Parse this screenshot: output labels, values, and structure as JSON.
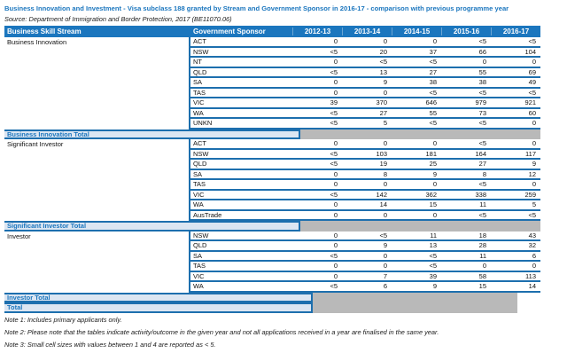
{
  "title": "Business Innovation and Investment - Visa subclass 188 granted by Stream and Government Sponsor in 2016-17 - comparison with previous programme year",
  "source": "Source: Department of Immigration and Border Protection, 2017 (BE11070.06)",
  "colors": {
    "header_bg": "#1b76be",
    "row_line": "#1d6fae",
    "total_band_bg": "#dce6f2",
    "total_text": "#1b76be",
    "gray_band": "#b9b9b9",
    "title_text": "#1b76be"
  },
  "table": {
    "headers": {
      "stream": "Business Skill Stream",
      "sponsor": "Government Sponsor",
      "years": [
        "2012-13",
        "2013-14",
        "2014-15",
        "2015-16",
        "2016-17"
      ]
    },
    "groups": [
      {
        "stream": "Business Innovation",
        "rows": [
          {
            "sponsor": "ACT",
            "values": [
              "0",
              "0",
              "0",
              "<5",
              "<5"
            ]
          },
          {
            "sponsor": "NSW",
            "values": [
              "<5",
              "20",
              "37",
              "66",
              "104"
            ]
          },
          {
            "sponsor": "NT",
            "values": [
              "0",
              "<5",
              "<5",
              "0",
              "0"
            ]
          },
          {
            "sponsor": "QLD",
            "values": [
              "<5",
              "13",
              "27",
              "55",
              "69"
            ]
          },
          {
            "sponsor": "SA",
            "values": [
              "0",
              "9",
              "38",
              "38",
              "49"
            ]
          },
          {
            "sponsor": "TAS",
            "values": [
              "0",
              "0",
              "<5",
              "<5",
              "<5"
            ]
          },
          {
            "sponsor": "VIC",
            "values": [
              "39",
              "370",
              "646",
              "979",
              "921"
            ]
          },
          {
            "sponsor": "WA",
            "values": [
              "<5",
              "27",
              "55",
              "73",
              "60"
            ]
          },
          {
            "sponsor": "UNKN",
            "values": [
              "<5",
              "5",
              "<5",
              "<5",
              "0"
            ]
          }
        ],
        "total_label": "Business Innovation Total",
        "gray_width": "wide"
      },
      {
        "stream": "Significant Investor",
        "rows": [
          {
            "sponsor": "ACT",
            "values": [
              "0",
              "0",
              "0",
              "<5",
              "0"
            ]
          },
          {
            "sponsor": "NSW",
            "values": [
              "<5",
              "103",
              "181",
              "164",
              "117"
            ]
          },
          {
            "sponsor": "QLD",
            "values": [
              "<5",
              "19",
              "25",
              "27",
              "9"
            ]
          },
          {
            "sponsor": "SA",
            "values": [
              "0",
              "8",
              "9",
              "8",
              "12"
            ]
          },
          {
            "sponsor": "TAS",
            "values": [
              "0",
              "0",
              "0",
              "<5",
              "0"
            ]
          },
          {
            "sponsor": "VIC",
            "values": [
              "<5",
              "142",
              "362",
              "338",
              "259"
            ]
          },
          {
            "sponsor": "WA",
            "values": [
              "0",
              "14",
              "15",
              "11",
              "5"
            ]
          },
          {
            "sponsor": "AusTrade",
            "values": [
              "0",
              "0",
              "0",
              "<5",
              "<5"
            ]
          }
        ],
        "total_label": "Significant Investor Total",
        "gray_width": "wide"
      },
      {
        "stream": "Investor",
        "rows": [
          {
            "sponsor": "NSW",
            "values": [
              "0",
              "<5",
              "11",
              "18",
              "43"
            ]
          },
          {
            "sponsor": "QLD",
            "values": [
              "0",
              "9",
              "13",
              "28",
              "32"
            ]
          },
          {
            "sponsor": "SA",
            "values": [
              "<5",
              "0",
              "<5",
              "11",
              "6"
            ]
          },
          {
            "sponsor": "TAS",
            "values": [
              "0",
              "0",
              "<5",
              "0",
              "0"
            ]
          },
          {
            "sponsor": "VIC",
            "values": [
              "0",
              "7",
              "39",
              "58",
              "113"
            ]
          },
          {
            "sponsor": "WA",
            "values": [
              "<5",
              "6",
              "9",
              "15",
              "14"
            ]
          }
        ],
        "total_label": "Investor Total",
        "gray_width": "narrow"
      }
    ],
    "grand_total": {
      "label": "Total",
      "gray_width": "narrow"
    }
  },
  "notes": [
    "Note 1: Includes primary applicants only.",
    "Note 2: Please note that the tables indicate activity/outcome in the given year and not all applications received in a year are finalised in the same year.",
    "Note 3: Small cell sizes with values between 1 and 4 are reported as < 5."
  ]
}
